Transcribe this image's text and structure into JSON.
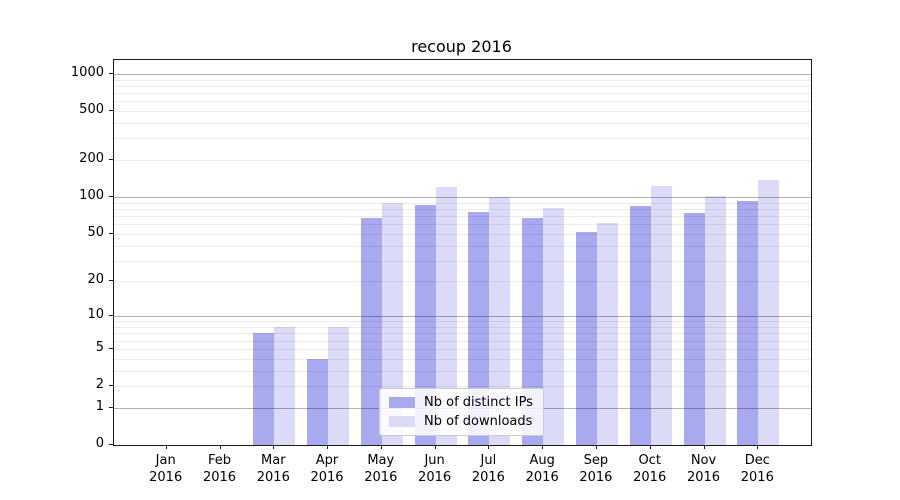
{
  "chart_data": {
    "type": "bar",
    "title": "recoup 2016",
    "categories": [
      {
        "month": "Jan",
        "year": "2016"
      },
      {
        "month": "Feb",
        "year": "2016"
      },
      {
        "month": "Mar",
        "year": "2016"
      },
      {
        "month": "Apr",
        "year": "2016"
      },
      {
        "month": "May",
        "year": "2016"
      },
      {
        "month": "Jun",
        "year": "2016"
      },
      {
        "month": "Jul",
        "year": "2016"
      },
      {
        "month": "Aug",
        "year": "2016"
      },
      {
        "month": "Sep",
        "year": "2016"
      },
      {
        "month": "Oct",
        "year": "2016"
      },
      {
        "month": "Nov",
        "year": "2016"
      },
      {
        "month": "Dec",
        "year": "2016"
      }
    ],
    "series": [
      {
        "name": "Nb of distinct IPs",
        "color": "#a9a9f0",
        "values": [
          0,
          0,
          7,
          4,
          67,
          87,
          76,
          68,
          52,
          85,
          74,
          93
        ]
      },
      {
        "name": "Nb of downloads",
        "color": "#dbdbf8",
        "values": [
          0,
          0,
          8,
          8,
          89,
          121,
          101,
          82,
          61,
          123,
          103,
          138
        ]
      }
    ],
    "yscale": "log10(1+v)",
    "yticks": [
      0,
      1,
      2,
      5,
      10,
      20,
      50,
      100,
      200,
      500,
      1000
    ],
    "minor_grid_values": [
      2,
      3,
      4,
      5,
      6,
      7,
      8,
      9,
      20,
      30,
      40,
      50,
      60,
      70,
      80,
      90,
      200,
      300,
      400,
      500,
      600,
      700,
      800,
      900
    ],
    "major_grid_values": [
      1,
      10,
      100,
      1000
    ],
    "ylim": [
      0,
      1275
    ],
    "grid": true,
    "legend_position": "inside-bottom-center",
    "colors": {
      "spine": "#1a1a1a",
      "major_grid": "#b3b3b3",
      "minor_grid": "#e9e9e9",
      "background": "#ffffff"
    }
  }
}
